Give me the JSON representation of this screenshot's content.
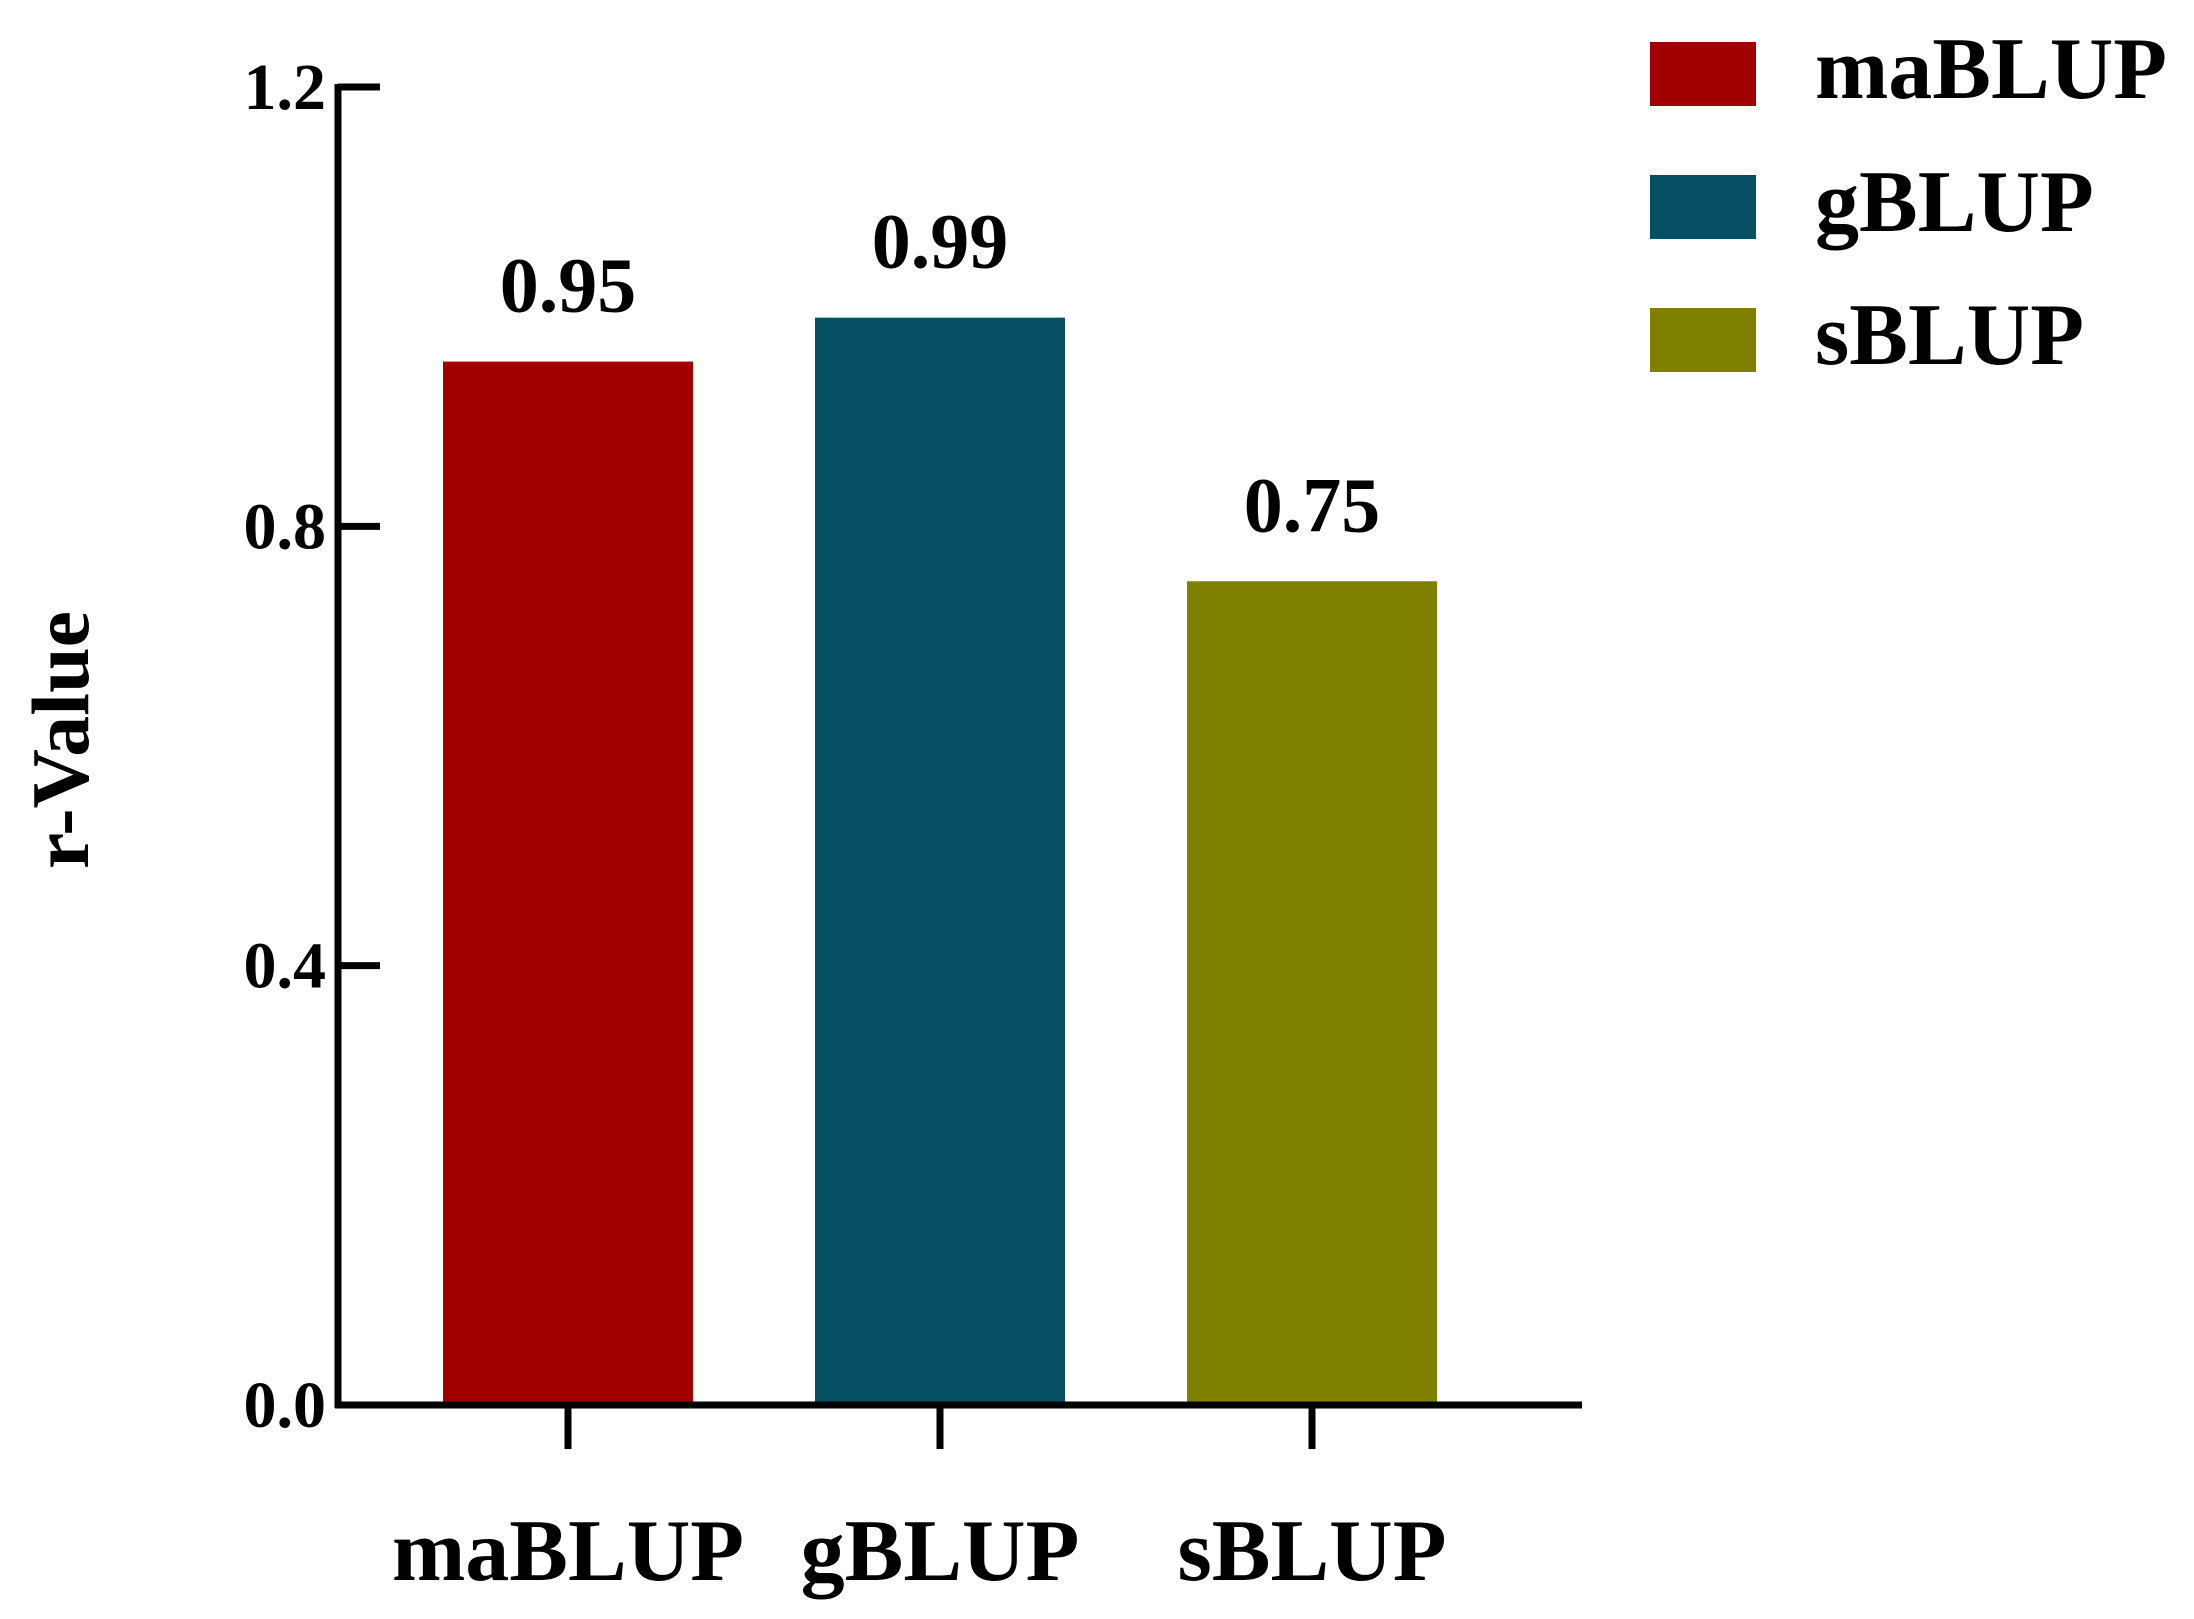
{
  "chart_data": {
    "type": "bar",
    "categories": [
      "maBLUP",
      "gBLUP",
      "sBLUP"
    ],
    "values": [
      0.95,
      0.99,
      0.75
    ],
    "data_labels": [
      "0.95",
      "0.99",
      "0.75"
    ],
    "colors": [
      "#a00000",
      "#054f62",
      "#808000"
    ],
    "title": "",
    "xlabel": "",
    "ylabel": "r-Value",
    "ylim": [
      0,
      1.2
    ],
    "yticks": [
      0.0,
      0.4,
      0.8,
      1.2
    ],
    "ytick_labels": [
      "0.0",
      "0.4",
      "0.8",
      "1.2"
    ],
    "grid": false,
    "legend": {
      "position": "top-right",
      "entries": [
        "maBLUP",
        "gBLUP",
        "sBLUP"
      ]
    }
  }
}
